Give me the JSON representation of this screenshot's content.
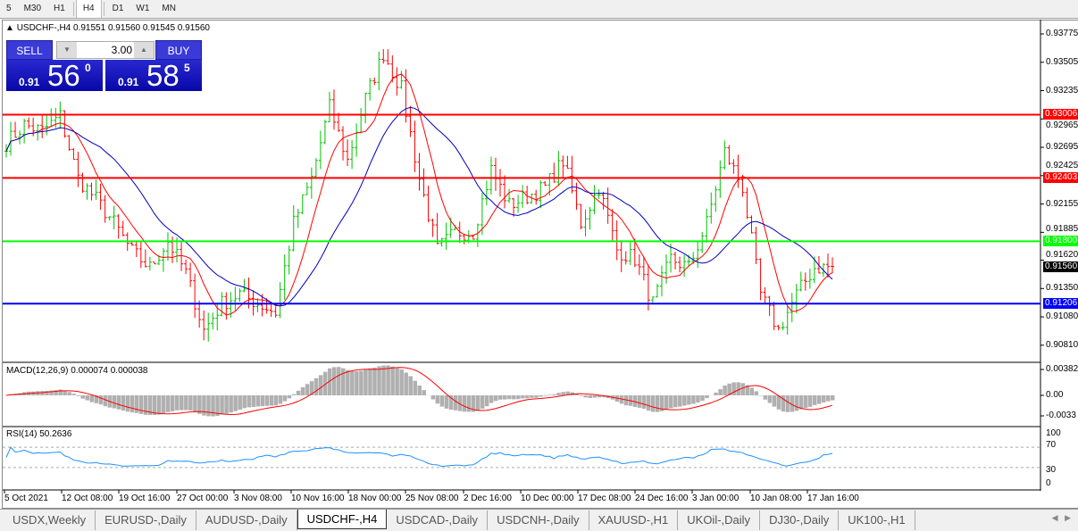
{
  "timeframes": [
    "5",
    "M30",
    "H1",
    "H4",
    "D1",
    "W1",
    "MN"
  ],
  "active_timeframe": "H4",
  "chart": {
    "symbol_line": "USDCHF-,H4  0.91551 0.91560 0.91545 0.91560",
    "collapse_icon": "triangle-up-icon"
  },
  "trade_panel": {
    "sell_label": "SELL",
    "buy_label": "BUY",
    "lot": "3.00",
    "sell_prefix": "0.91",
    "sell_big": "56",
    "sell_sup": "0",
    "buy_prefix": "0.91",
    "buy_big": "58",
    "buy_sup": "5"
  },
  "price_axis": [
    "0.93775",
    "0.93505",
    "0.93235",
    "0.92965",
    "0.92695",
    "0.92425",
    "0.92155",
    "0.91885",
    "0.91620",
    "0.91350",
    "0.91080",
    "0.90810"
  ],
  "levels": [
    {
      "price": "0.93006",
      "color": "#ff0000"
    },
    {
      "price": "0.92403",
      "color": "#ff0000"
    },
    {
      "price": "0.91800",
      "color": "#00ff00"
    },
    {
      "price": "0.91206",
      "color": "#0000ff"
    }
  ],
  "current_price": "0.91560",
  "macd": {
    "label": "MACD(12,26,9) 0.000074 0.000038",
    "axis": [
      "0.00382",
      "0.00",
      "-0.0033"
    ]
  },
  "rsi": {
    "label": "RSI(14) 50.2636",
    "axis": [
      "100",
      "70",
      "30",
      "0"
    ]
  },
  "time_axis": [
    "5 Oct 2021",
    "12 Oct 08:00",
    "19 Oct 16:00",
    "27 Oct 00:00",
    "3 Nov 08:00",
    "10 Nov 16:00",
    "18 Nov 00:00",
    "25 Nov 08:00",
    "2 Dec 16:00",
    "10 Dec 00:00",
    "17 Dec 08:00",
    "24 Dec 16:00",
    "3 Jan 00:00",
    "10 Jan 08:00",
    "17 Jan 16:00"
  ],
  "tabs": [
    "USDX,Weekly",
    "EURUSD-,Daily",
    "AUDUSD-,Daily",
    "USDCHF-,H4",
    "USDCAD-,Daily",
    "USDCNH-,Daily",
    "XAUUSD-,H1",
    "UKOil-,Daily",
    "DJ30-,Daily",
    "UK100-,H1"
  ],
  "active_tab": "USDCHF-,H4",
  "chart_data": {
    "type": "ohlc",
    "symbol": "USDCHF",
    "timeframe": "H4",
    "ylim": [
      0.9081,
      0.93775
    ],
    "approx_closes": [
      0.92738,
      0.92908,
      0.9285,
      0.92993,
      0.92398,
      0.922,
      0.91973,
      0.917,
      0.91548,
      0.91803,
      0.915,
      0.90953,
      0.91208,
      0.913,
      0.91208,
      0.91123,
      0.91973,
      0.92398,
      0.93078,
      0.92568,
      0.93163,
      0.93588,
      0.93248,
      0.92398,
      0.91718,
      0.91888,
      0.91888,
      0.92483,
      0.92143,
      0.92228,
      0.92313,
      0.92568,
      0.91973,
      0.92313,
      0.91718,
      0.91633,
      0.91208,
      0.91633,
      0.91548,
      0.91973,
      0.92653,
      0.92313,
      0.91293,
      0.90953,
      0.91293,
      0.91548,
      0.9156
    ],
    "colors": {
      "up": "#00c000",
      "down": "#ff0000",
      "ma_fast": "#ff0000",
      "ma_slow": "#0000c0",
      "macd_hist": "#b0b0b0",
      "macd_signal": "#ff0000",
      "rsi": "#1e90ff"
    }
  }
}
